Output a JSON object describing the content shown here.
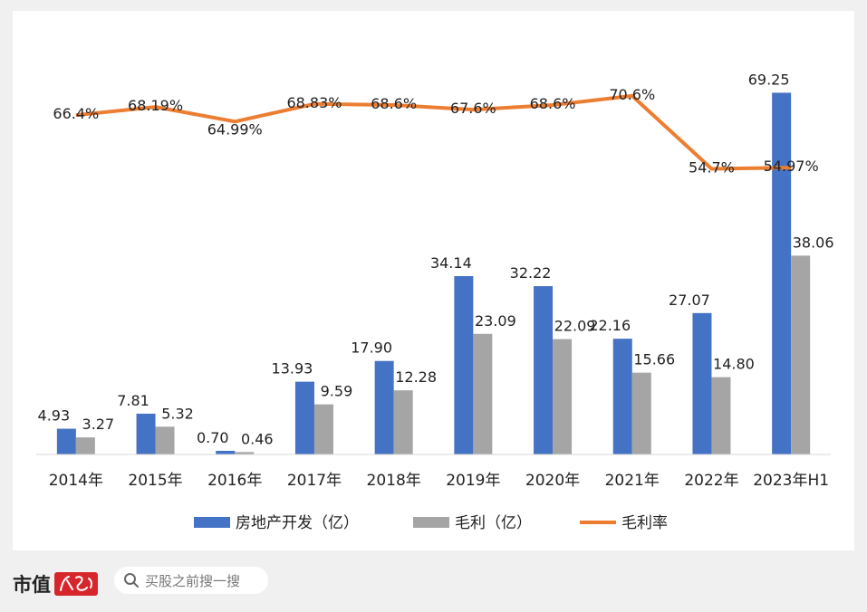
{
  "chart_data": {
    "type": "bar+line",
    "categories": [
      "2014年",
      "2015年",
      "2016年",
      "2017年",
      "2018年",
      "2019年",
      "2020年",
      "2021年",
      "2022年",
      "2023年H1"
    ],
    "series": [
      {
        "name": "房地产开发（亿）",
        "type": "bar",
        "color": "#4472c4",
        "values": [
          4.93,
          7.81,
          0.7,
          13.93,
          17.9,
          34.14,
          32.22,
          22.16,
          27.07,
          69.25
        ],
        "labels": [
          "4.93",
          "7.81",
          "0.70",
          "13.93",
          "17.90",
          "34.14",
          "32.22",
          "22.16",
          "27.07",
          "69.25"
        ]
      },
      {
        "name": "毛利（亿）",
        "type": "bar",
        "color": "#a5a5a5",
        "values": [
          3.27,
          5.32,
          0.46,
          9.59,
          12.28,
          23.09,
          22.09,
          15.66,
          14.8,
          38.06
        ],
        "labels": [
          "3.27",
          "5.32",
          "0.46",
          "9.59",
          "12.28",
          "23.09",
          "22.09",
          "15.66",
          "14.80",
          "38.06"
        ]
      },
      {
        "name": "毛利率",
        "type": "line",
        "color": "#ed7d31",
        "values": [
          66.4,
          68.19,
          64.99,
          68.83,
          68.6,
          67.6,
          68.6,
          70.6,
          54.7,
          54.97
        ],
        "labels": [
          "66.4%",
          "68.19%",
          "64.99%",
          "68.83%",
          "68.6%",
          "67.6%",
          "68.6%",
          "70.6%",
          "54.7%",
          "54.97%"
        ]
      }
    ],
    "legend_position": "bottom",
    "grid": false
  },
  "footer": {
    "brand": "市值",
    "logo_icon": "fengyun-logo-icon",
    "search_placeholder": "买股之前搜一搜",
    "search_icon": "search-icon"
  }
}
